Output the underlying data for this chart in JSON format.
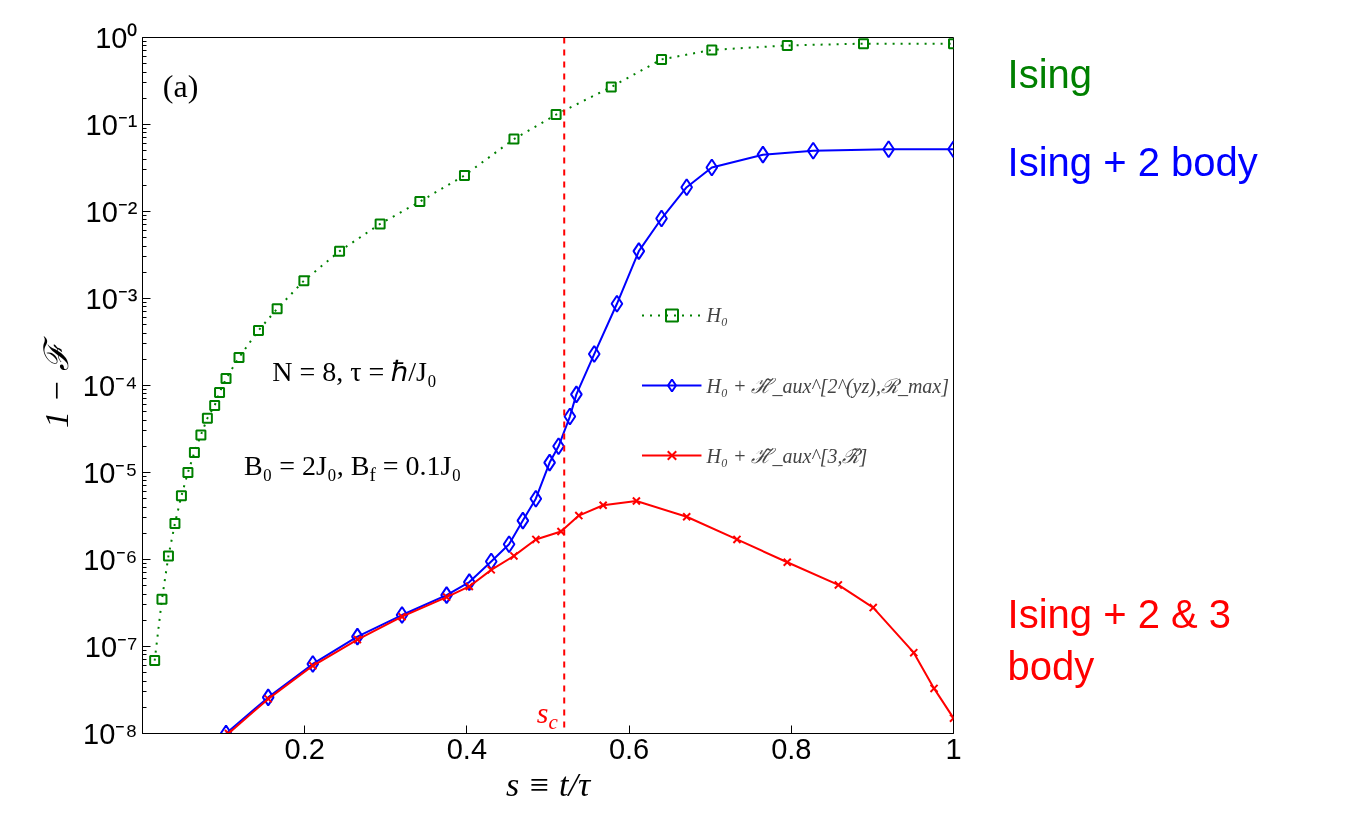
{
  "chart_data": {
    "type": "line",
    "xlabel": "s ≡ t/τ",
    "ylabel": "1 − ℱ",
    "log": "y",
    "xlim": [
      0,
      1
    ],
    "ylim": [
      1e-08,
      1
    ],
    "xticks": [
      0.2,
      0.4,
      0.6,
      0.8,
      1
    ],
    "yticks": [
      {
        "value": 1e-08,
        "label": "10⁻⁸"
      },
      {
        "value": 1e-07,
        "label": "10⁻⁷"
      },
      {
        "value": 1e-06,
        "label": "10⁻⁶"
      },
      {
        "value": 1e-05,
        "label": "10⁻⁵"
      },
      {
        "value": 0.0001,
        "label": "10⁻⁴"
      },
      {
        "value": 0.001,
        "label": "10⁻³"
      },
      {
        "value": 0.01,
        "label": "10⁻²"
      },
      {
        "value": 0.1,
        "label": "10⁻¹"
      },
      {
        "value": 1,
        "label": "10⁰"
      }
    ],
    "grid": false,
    "legend": "right",
    "series": [
      {
        "name": "H₀",
        "color": "#008000",
        "marker": "square",
        "line_style": "dotted",
        "x": [
          0.015,
          0.024,
          0.032,
          0.04,
          0.048,
          0.056,
          0.064,
          0.072,
          0.08,
          0.089,
          0.095,
          0.103,
          0.119,
          0.143,
          0.166,
          0.199,
          0.243,
          0.293,
          0.342,
          0.397,
          0.458,
          0.51,
          0.578,
          0.64,
          0.702,
          0.795,
          0.889,
          1.0
        ],
        "values": [
          6.9e-08,
          3.5e-07,
          1.1e-06,
          2.6e-06,
          5.4e-06,
          1e-05,
          1.7e-05,
          2.7e-05,
          4.2e-05,
          5.9e-05,
          8.3e-05,
          0.00012,
          0.00021,
          0.00043,
          0.00076,
          0.0016,
          0.0035,
          0.0072,
          0.013,
          0.026,
          0.068,
          0.13,
          0.27,
          0.56,
          0.72,
          0.81,
          0.85,
          0.85
        ]
      },
      {
        "name": "H₀ + ℋ̃_aux^[2^(yz),ℛ_max]",
        "color": "#0000ff",
        "marker": "diamond",
        "line_style": "solid",
        "x": [
          0.103,
          0.155,
          0.21,
          0.265,
          0.32,
          0.375,
          0.403,
          0.43,
          0.452,
          0.469,
          0.485,
          0.502,
          0.513,
          0.527,
          0.535,
          0.557,
          0.585,
          0.612,
          0.64,
          0.671,
          0.702,
          0.765,
          0.827,
          0.92,
          1.0
        ],
        "values": [
          1e-08,
          2.6e-08,
          6.3e-08,
          1.3e-07,
          2.3e-07,
          3.9e-07,
          5.5e-07,
          9.5e-07,
          1.5e-06,
          2.8e-06,
          5e-06,
          1.3e-05,
          2e-05,
          4.4e-05,
          7.9e-05,
          0.00023,
          0.00087,
          0.0035,
          0.0083,
          0.019,
          0.032,
          0.045,
          0.05,
          0.052,
          0.052
        ]
      },
      {
        "name": "H₀ + ℋ̃_aux^[3,ℛ̃]",
        "color": "#ff0000",
        "marker": "cross",
        "line_style": "solid",
        "x": [
          0.106,
          0.155,
          0.21,
          0.265,
          0.32,
          0.375,
          0.403,
          0.43,
          0.458,
          0.485,
          0.516,
          0.538,
          0.568,
          0.609,
          0.671,
          0.733,
          0.795,
          0.858,
          0.901,
          0.951,
          0.976,
          1.0
        ],
        "values": [
          1e-08,
          2.5e-08,
          6e-08,
          1.2e-07,
          2.2e-07,
          3.7e-07,
          4.9e-07,
          7.6e-07,
          1.1e-06,
          1.7e-06,
          2.1e-06,
          3.2e-06,
          4.2e-06,
          4.7e-06,
          3.1e-06,
          1.7e-06,
          9.3e-07,
          5.1e-07,
          2.8e-07,
          8.5e-08,
          3.3e-08,
          1.5e-08
        ]
      }
    ],
    "ref_lines": [
      {
        "axis": "x",
        "value": 0.52,
        "label": "s$_{c}$",
        "color": "#ff0000",
        "line_style": "dashed"
      }
    ],
    "annotations": [
      "(a)",
      "N = 8, τ = ℏ/J₀",
      "B₀ = 2J₀, B$_{f}$ = 0.1J₀",
      "Ising",
      "Ising + 2 body",
      "Ising + 2 & 3 body"
    ]
  }
}
